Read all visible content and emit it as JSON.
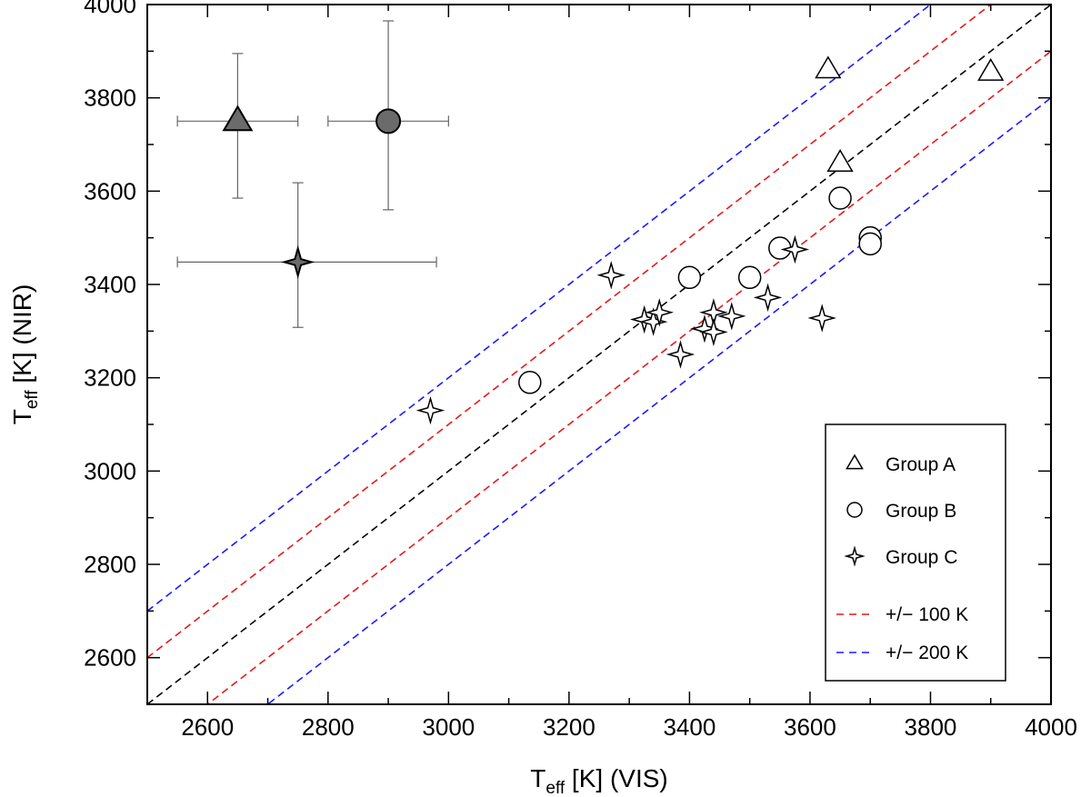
{
  "chart_data": {
    "type": "scatter",
    "xlabel": {
      "main": "T",
      "sub": "eff",
      "rest": " [K] (VIS)"
    },
    "ylabel": {
      "main": "T",
      "sub": "eff",
      "rest": " [K] (NIR)"
    },
    "xlim": [
      2500,
      4000
    ],
    "ylim": [
      2500,
      4000
    ],
    "xticks": [
      2600,
      2800,
      3000,
      3200,
      3400,
      3600,
      3800,
      4000
    ],
    "yticks": [
      2600,
      2800,
      3000,
      3200,
      3400,
      3600,
      3800,
      4000
    ],
    "x_minor_step": 100,
    "y_minor_step": 100,
    "reference_lines": [
      {
        "name": "one-to-one",
        "offset": 0,
        "color": "#000000"
      },
      {
        "name": "plus-100",
        "offset": 100,
        "color": "#e8191a"
      },
      {
        "name": "minus-100",
        "offset": -100,
        "color": "#e8191a"
      },
      {
        "name": "plus-200",
        "offset": 200,
        "color": "#1a1aff"
      },
      {
        "name": "minus-200",
        "offset": -200,
        "color": "#1a1aff"
      }
    ],
    "series": [
      {
        "name": "Group A",
        "marker": "triangle",
        "points": [
          [
            3630,
            3860
          ],
          [
            3900,
            3855
          ],
          [
            3650,
            3660
          ]
        ]
      },
      {
        "name": "Group B",
        "marker": "circle",
        "points": [
          [
            3135,
            3190
          ],
          [
            3400,
            3415
          ],
          [
            3500,
            3415
          ],
          [
            3550,
            3478
          ],
          [
            3650,
            3585
          ],
          [
            3700,
            3500
          ],
          [
            3700,
            3487
          ]
        ]
      },
      {
        "name": "Group C",
        "marker": "star",
        "points": [
          [
            2970,
            3130
          ],
          [
            3270,
            3420
          ],
          [
            3325,
            3325
          ],
          [
            3340,
            3320
          ],
          [
            3350,
            3340
          ],
          [
            3385,
            3250
          ],
          [
            3425,
            3305
          ],
          [
            3440,
            3340
          ],
          [
            3440,
            3298
          ],
          [
            3470,
            3332
          ],
          [
            3530,
            3372
          ],
          [
            3575,
            3475
          ],
          [
            3620,
            3328
          ]
        ]
      }
    ],
    "error_bars": [
      {
        "name": "Group A",
        "marker": "triangle",
        "x": 2650,
        "y": 3750,
        "xerr": [
          100,
          100
        ],
        "yerr": [
          165,
          145
        ]
      },
      {
        "name": "Group B",
        "marker": "circle",
        "x": 2900,
        "y": 3750,
        "xerr": [
          100,
          100
        ],
        "yerr": [
          190,
          215
        ]
      },
      {
        "name": "Group C",
        "marker": "star",
        "x": 2750,
        "y": 3448,
        "xerr": [
          200,
          230
        ],
        "yerr": [
          140,
          170
        ]
      }
    ],
    "legend": {
      "position": "bottom-right",
      "entries": [
        {
          "label": "Group A",
          "marker": "triangle"
        },
        {
          "label": "Group B",
          "marker": "circle"
        },
        {
          "label": "Group C",
          "marker": "star"
        },
        {
          "label": "+/− 100 K",
          "marker": "dash",
          "color": "#e8191a"
        },
        {
          "label": "+/− 200 K",
          "marker": "dash",
          "color": "#1a1aff"
        }
      ]
    }
  }
}
